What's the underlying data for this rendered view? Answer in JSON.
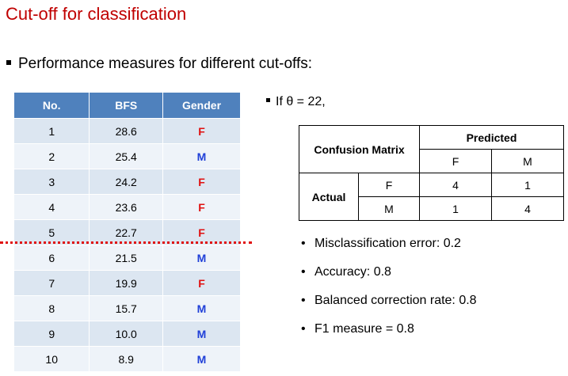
{
  "title": "Cut-off for classification",
  "main_bullet": "Performance measures for different cut-offs:",
  "table": {
    "headers": [
      "No.",
      "BFS",
      "Gender"
    ],
    "rows": [
      {
        "no": "1",
        "bfs": "28.6",
        "gender": "F"
      },
      {
        "no": "2",
        "bfs": "25.4",
        "gender": "M"
      },
      {
        "no": "3",
        "bfs": "24.2",
        "gender": "F"
      },
      {
        "no": "4",
        "bfs": "23.6",
        "gender": "F"
      },
      {
        "no": "5",
        "bfs": "22.7",
        "gender": "F"
      },
      {
        "no": "6",
        "bfs": "21.5",
        "gender": "M"
      },
      {
        "no": "7",
        "bfs": "19.9",
        "gender": "F"
      },
      {
        "no": "8",
        "bfs": "15.7",
        "gender": "M"
      },
      {
        "no": "9",
        "bfs": "10.0",
        "gender": "M"
      },
      {
        "no": "10",
        "bfs": "8.9",
        "gender": "M"
      }
    ]
  },
  "theta_label": "If θ = 22,",
  "confusion_matrix": {
    "title": "Confusion Matrix",
    "predicted": "Predicted",
    "actual": "Actual",
    "pred_F": "F",
    "pred_M": "M",
    "act_F": "F",
    "act_M": "M",
    "ff": "4",
    "fm": "1",
    "mf": "1",
    "mm": "4"
  },
  "metrics": [
    "Misclassification error: 0.2",
    "Accuracy: 0.8",
    "Balanced correction rate: 0.8",
    "F1 measure = 0.8"
  ],
  "colors": {
    "title": "#c00000",
    "header_bg": "#4f81bd",
    "row_bg_a": "#dce6f1",
    "row_bg_b": "#eef3f9",
    "female": "#e01010",
    "male": "#1f3fd8",
    "cutoff_line": "#e01010"
  }
}
